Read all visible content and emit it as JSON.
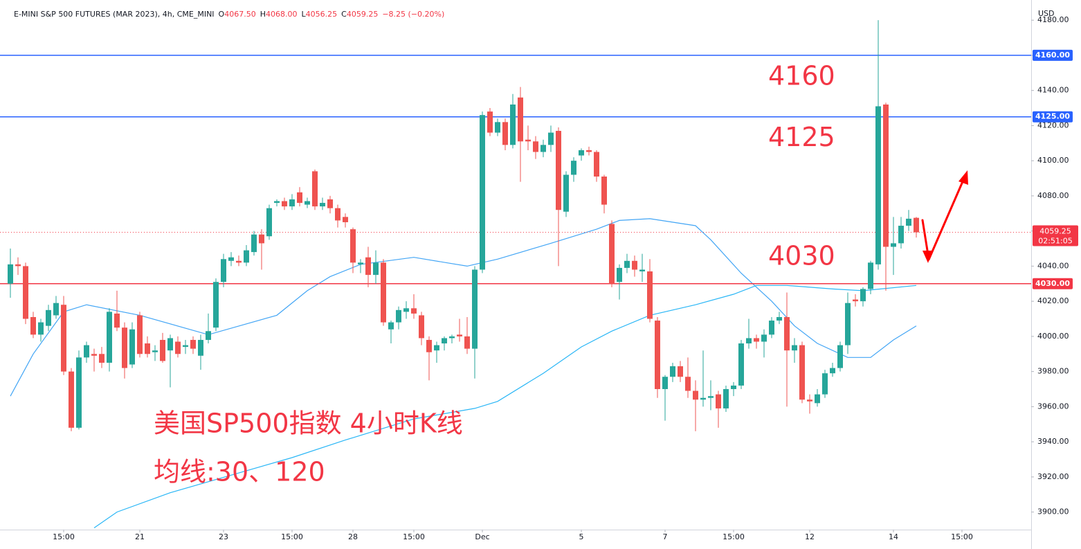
{
  "chart_data": {
    "type": "candlestick",
    "header": {
      "symbol": "E-MINI S&P 500 FUTURES (MAR 2023), 4h, CME_MINI",
      "ohlc": [
        {
          "label": "O",
          "value": "4067.50"
        },
        {
          "label": "H",
          "value": "4068.00"
        },
        {
          "label": "L",
          "value": "4056.25"
        },
        {
          "label": "C",
          "value": "4059.25"
        }
      ],
      "change": "−8.25 (−0.20%)"
    },
    "currency": "USD",
    "annotation_lines": [
      "美国SP500指数 4小时K线",
      "均线:30、120"
    ],
    "categories": [
      null,
      null,
      null,
      null,
      null,
      null,
      null,
      "15:00",
      null,
      null,
      null,
      null,
      null,
      null,
      null,
      null,
      null,
      "21",
      null,
      null,
      null,
      null,
      null,
      null,
      null,
      null,
      null,
      null,
      "23",
      null,
      null,
      null,
      null,
      null,
      null,
      null,
      null,
      "15:00",
      null,
      null,
      null,
      null,
      null,
      null,
      null,
      "28",
      null,
      null,
      null,
      null,
      null,
      null,
      null,
      "15:00",
      null,
      null,
      null,
      null,
      null,
      null,
      null,
      null,
      "Dec",
      null,
      null,
      null,
      null,
      null,
      null,
      null,
      null,
      null,
      null,
      null,
      null,
      "5",
      null,
      null,
      null,
      null,
      null,
      null,
      null,
      null,
      null,
      null,
      "7",
      null,
      null,
      null,
      null,
      null,
      null,
      null,
      null,
      "15:00",
      null,
      null,
      null,
      null,
      null,
      null,
      null,
      null,
      null,
      "12",
      null,
      null,
      null,
      null,
      null,
      null,
      null,
      null,
      null,
      null,
      "14",
      null,
      null,
      null,
      null,
      null,
      null,
      null,
      null,
      "15:00"
    ],
    "open": [
      4030,
      4041,
      4040,
      4011,
      4001,
      4006,
      4012,
      4018,
      3980,
      3948,
      3988,
      3990,
      3990,
      3985,
      4013,
      4005,
      3984,
      4012,
      3996,
      3991,
      3998,
      3992,
      3997,
      3994,
      3998,
      3989,
      3998,
      4005,
      4031,
      4043,
      4043,
      4042,
      4048,
      4058,
      4057,
      4076,
      4077,
      4074,
      4082,
      4075,
      4094,
      4074,
      4078,
      4073,
      4068,
      4061,
      4041,
      4045,
      4035,
      4042,
      4004,
      4008,
      4014,
      4016,
      4012,
      3998,
      3992,
      3996,
      3999,
      4001,
      4000,
      3993,
      4038,
      4128,
      4116,
      4122,
      4109,
      4136,
      4112,
      4111,
      4105,
      4109,
      4117,
      4071,
      4092,
      4103,
      4106,
      4105,
      4091,
      4064,
      4031,
      4039,
      4043,
      4037,
      4037,
      4009,
      3970,
      3977,
      3983,
      3977,
      3969,
      3964,
      3965,
      3967,
      3959,
      3970,
      3972,
      3996,
      3999,
      3997,
      4001,
      4009,
      4011,
      3992,
      3995,
      3964,
      3962,
      3967,
      3979,
      3982,
      3995,
      4021,
      4020,
      4027,
      4041,
      4132,
      4051,
      4053,
      4063,
      4067.5,
      null,
      null,
      null,
      null,
      null,
      null
    ],
    "high": [
      4050,
      4045,
      4042,
      4014,
      4010,
      4018,
      4023,
      4023,
      3982,
      3992,
      3997,
      3993,
      3994,
      4016,
      4026,
      4008,
      4008,
      4014,
      4000,
      3995,
      4002,
      4001,
      4000,
      3998,
      4000,
      4001,
      4013,
      4033,
      4047,
      4048,
      4046,
      4052,
      4060,
      4061,
      4075,
      4078,
      4079,
      4081,
      4085,
      4079,
      4095,
      4079,
      4080,
      4075,
      4070,
      4062,
      4044,
      4051,
      4049,
      4044,
      4009,
      4017,
      4020,
      4024,
      4014,
      4000,
      3997,
      4000,
      4001,
      4010,
      4011,
      4040,
      4128,
      4130,
      4124,
      4124,
      4138,
      4142,
      4120,
      4114,
      4112,
      4120,
      4119,
      4094,
      4102,
      4107,
      4108,
      4106,
      4092,
      4066,
      4041,
      4047,
      4046,
      4047,
      4044,
      4011,
      3978,
      3985,
      3986,
      3988,
      3975,
      3992,
      3975,
      3969,
      3972,
      3974,
      3998,
      4010,
      4001,
      4004,
      4011,
      4014,
      4025,
      3999,
      3997,
      3967,
      3970,
      3981,
      3985,
      3997,
      4025,
      4024,
      4028,
      4043,
      4180,
      4133,
      4068,
      4068,
      4072,
      4068,
      null,
      null,
      null,
      null,
      null,
      null
    ],
    "low": [
      4022,
      4035,
      4007,
      3999,
      3997,
      4003,
      4010,
      3978,
      3946,
      3947,
      3985,
      3980,
      3982,
      3980,
      4003,
      3976,
      3982,
      3988,
      3988,
      3986,
      3985,
      3971,
      3988,
      3990,
      3990,
      3981,
      3996,
      4003,
      4028,
      4040,
      4040,
      4040,
      4046,
      4038,
      4055,
      4074,
      4072,
      4072,
      4074,
      4073,
      4072,
      4072,
      4070,
      4062,
      4062,
      4036,
      4036,
      4028,
      4030,
      4006,
      3996,
      4004,
      4010,
      4010,
      3995,
      3975,
      3985,
      3992,
      3996,
      3997,
      3990,
      3976,
      4036,
      4114,
      4114,
      4106,
      4107,
      4088,
      4106,
      4101,
      4102,
      4105,
      4040,
      4068,
      4088,
      4100,
      4103,
      4088,
      4070,
      4028,
      4021,
      4036,
      4034,
      4031,
      4008,
      3965,
      3952,
      3974,
      3974,
      3965,
      3946,
      3960,
      3958,
      3948,
      3957,
      3966,
      3970,
      3993,
      3993,
      3988,
      3999,
      4007,
      3960,
      3985,
      3962,
      3956,
      3960,
      3965,
      3977,
      3980,
      3990,
      4017,
      4017,
      4024,
      4038,
      4026,
      4035,
      4050,
      4060,
      4056.25,
      null,
      null,
      null,
      null,
      null,
      null
    ],
    "close": [
      4041,
      4040,
      4010,
      4001,
      4008,
      4015,
      4019,
      3980,
      3948,
      3988,
      3995,
      3989,
      3985,
      4014,
      4005,
      3982,
      4004,
      3990,
      3990,
      3992,
      3986,
      3999,
      3990,
      3995,
      3993,
      3998,
      4003,
      4031,
      4044,
      4045,
      4042,
      4049,
      4058,
      4053,
      4073,
      4077,
      4074,
      4078,
      4076,
      4077,
      4074,
      4076,
      4073,
      4066,
      4065,
      4042,
      4042,
      4035,
      4042,
      4008,
      4008,
      4015,
      4016,
      4013,
      3999,
      3991,
      3995,
      3999,
      4000,
      4000,
      3993,
      4038,
      4126,
      4116,
      4122,
      4109,
      4132,
      4111,
      4111,
      4105,
      4109,
      4116,
      4072,
      4092,
      4100,
      4106,
      4105,
      4091,
      4075,
      4030,
      4039,
      4043,
      4038,
      4038,
      4010,
      3970,
      3977,
      3983,
      3977,
      3969,
      3964,
      3965,
      3966,
      3959,
      3970,
      3972,
      3996,
      3999,
      3997,
      4001,
      4009,
      4011,
      3992,
      3995,
      3964,
      3963,
      3967,
      3979,
      3982,
      3995,
      4019,
      4020,
      4027,
      4042,
      4131,
      4051,
      4053,
      4063,
      4067,
      4059.25,
      null,
      null,
      null,
      null,
      null,
      null
    ],
    "up_color": "#26a69a",
    "down_color": "#ef5350",
    "ylim": [
      3890,
      4191.5
    ],
    "yticks": [
      {
        "value": 3900,
        "label": "3900.00"
      },
      {
        "value": 3920,
        "label": "3920.00"
      },
      {
        "value": 3940,
        "label": "3940.00"
      },
      {
        "value": 3960,
        "label": "3960.00"
      },
      {
        "value": 3980,
        "label": "3980.00"
      },
      {
        "value": 4000,
        "label": "4000.00"
      },
      {
        "value": 4020,
        "label": "4020.00"
      },
      {
        "value": 4040,
        "label": "4040.00"
      },
      {
        "value": 4060,
        "label": "4060.00"
      },
      {
        "value": 4080,
        "label": "4080.00"
      },
      {
        "value": 4100,
        "label": "4100.00"
      },
      {
        "value": 4120,
        "label": "4120.00"
      },
      {
        "value": 4140,
        "label": "4140.00"
      },
      {
        "value": 4160,
        "label": "4160.00"
      },
      {
        "value": 4180,
        "label": "4180.00"
      }
    ],
    "moving_averages": [
      {
        "color": "#42a5f5",
        "x": [
          0,
          3,
          7,
          10,
          17,
          26,
          35,
          39,
          42,
          46,
          53,
          60,
          64,
          71,
          77,
          80,
          84,
          90,
          92,
          96,
          100,
          103,
          106,
          110,
          113,
          116,
          119
        ],
        "values": [
          3966,
          3990,
          4014,
          4018,
          4012,
          4001,
          4012,
          4026,
          4034,
          4041,
          4045,
          4040,
          4044,
          4053,
          4061,
          4066,
          4067,
          4063,
          4055,
          4036,
          4020,
          4006,
          3996,
          3988,
          3988,
          3998,
          4006
        ]
      },
      {
        "color": "#29b6f6",
        "x": [
          11,
          14,
          21,
          29,
          37,
          44,
          53,
          61,
          64,
          70,
          75,
          79,
          84,
          90,
          95,
          98,
          102,
          108,
          112,
          119
        ],
        "values": [
          3891,
          3900,
          3911,
          3921,
          3931,
          3941,
          3953,
          3959,
          3963,
          3979,
          3994,
          4003,
          4012,
          4018,
          4024,
          4029,
          4029,
          4027,
          4026,
          4029
        ]
      }
    ],
    "levels": [
      {
        "value": 4160,
        "label": "4160.00",
        "annotation": "4160",
        "color": "#2962ff"
      },
      {
        "value": 4125,
        "label": "4125.00",
        "annotation": "4125",
        "color": "#2962ff"
      },
      {
        "value": 4030,
        "label": "4030.00",
        "annotation": "4030",
        "color": "#f23645"
      }
    ],
    "last_price": {
      "value": 4059.25,
      "countdown": "02:51:05",
      "color": "#f23645"
    }
  }
}
